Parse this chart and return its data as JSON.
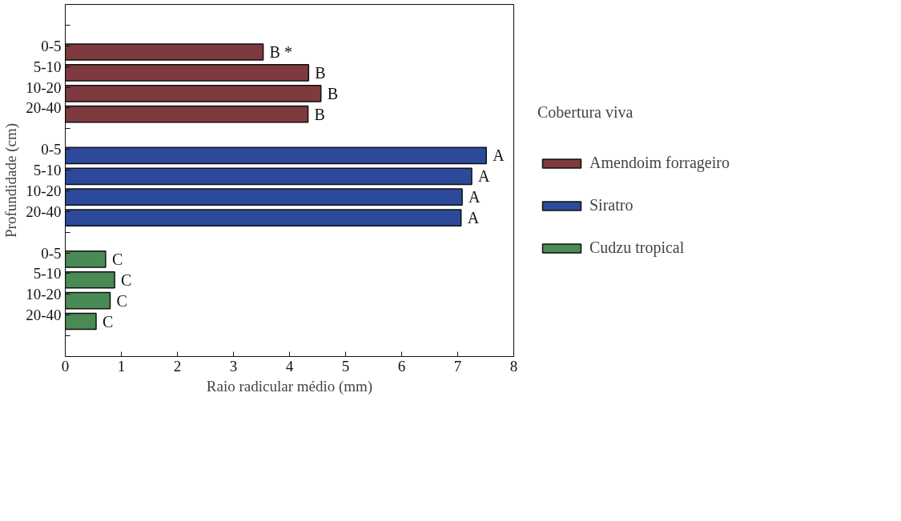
{
  "chart_data": {
    "type": "bar",
    "orientation": "horizontal",
    "xlabel": "Raio radicular médio (mm)",
    "ylabel": "Profundidade (cm)",
    "legend_title": "Cobertura viva",
    "legend": "right",
    "categories": [
      null,
      "0-5",
      "5-10",
      "10-20",
      "20-40",
      null,
      "0-5",
      "5-10",
      "10-20",
      "20-40",
      null,
      "0-5",
      "5-10",
      "10-20",
      "20-40",
      null
    ],
    "xlim": [
      0,
      8
    ],
    "xticks": [
      0,
      1,
      2,
      3,
      4,
      5,
      6,
      7,
      8
    ],
    "grid": false,
    "series": [
      {
        "name": "Amendoim forrageiro",
        "color": "#7e3a3e",
        "values": [
          null,
          3.53,
          4.34,
          4.56,
          4.33,
          null,
          null,
          null,
          null,
          null,
          null,
          null,
          null,
          null,
          null,
          null
        ],
        "value_labels": [
          null,
          "B *",
          "B",
          "B",
          "B",
          null,
          null,
          null,
          null,
          null,
          null,
          null,
          null,
          null,
          null,
          null
        ]
      },
      {
        "name": "Siratro",
        "color": "#2d4a9a",
        "values": [
          null,
          null,
          null,
          null,
          null,
          null,
          7.51,
          7.25,
          7.08,
          7.06,
          null,
          null,
          null,
          null,
          null,
          null
        ],
        "value_labels": [
          null,
          null,
          null,
          null,
          null,
          null,
          "A",
          "A",
          "A",
          "A",
          null,
          null,
          null,
          null,
          null,
          null
        ]
      },
      {
        "name": "Cudzu tropical",
        "color": "#4a8a55",
        "values": [
          null,
          null,
          null,
          null,
          null,
          null,
          null,
          null,
          null,
          null,
          null,
          0.72,
          0.88,
          0.8,
          0.55,
          null
        ],
        "value_labels": [
          null,
          null,
          null,
          null,
          null,
          null,
          null,
          null,
          null,
          null,
          null,
          "C",
          "C",
          "C",
          "C",
          null
        ]
      }
    ]
  }
}
